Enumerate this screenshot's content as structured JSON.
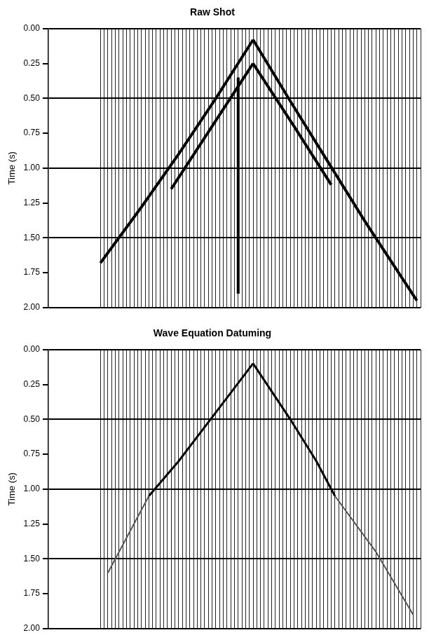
{
  "chart_data": [
    {
      "type": "line",
      "title": "Raw Shot",
      "y_label": "Time (s)",
      "xlim": [
        0,
        100
      ],
      "ylim": [
        0,
        2
      ],
      "xticks": [
        14,
        15,
        16,
        17,
        18,
        19,
        20,
        21,
        22,
        23,
        24,
        25,
        26,
        27,
        28,
        29,
        30,
        31,
        32,
        33,
        34,
        35,
        36,
        37,
        38,
        39,
        40,
        41,
        42,
        43,
        44,
        45,
        46,
        47,
        48,
        49,
        50,
        51,
        52,
        53,
        54,
        55,
        56,
        57,
        58,
        59,
        60,
        61,
        62,
        63,
        64,
        65,
        66,
        67,
        68,
        69,
        70,
        71,
        72,
        73,
        74,
        75,
        76,
        77,
        78,
        79,
        80,
        81,
        82,
        83,
        84,
        85,
        86,
        87,
        88,
        89,
        90,
        91,
        92,
        93,
        94,
        95,
        96,
        97,
        98,
        99,
        100
      ],
      "yticks": [
        {
          "value": 0,
          "label": "0.00"
        },
        {
          "value": 0.25,
          "label": "0.25"
        },
        {
          "value": 0.5,
          "label": "0.50"
        },
        {
          "value": 0.75,
          "label": "0.75"
        },
        {
          "value": 1,
          "label": "1.00"
        },
        {
          "value": 1.25,
          "label": "1.25"
        },
        {
          "value": 1.5,
          "label": "1.50"
        },
        {
          "value": 1.75,
          "label": "1.75"
        },
        {
          "value": 2,
          "label": "2.00"
        }
      ],
      "grid": true,
      "tick_labels": "y",
      "series": [
        {
          "color": "#000000",
          "x": [
            55,
            45,
            35,
            25,
            14
          ],
          "values": [
            0.08,
            0.5,
            0.9,
            1.28,
            1.68
          ]
        },
        {
          "color": "#000000",
          "x": [
            55,
            65,
            75,
            85,
            99
          ],
          "values": [
            0.08,
            0.52,
            0.95,
            1.38,
            1.95
          ]
        },
        {
          "color": "#000000",
          "x": [
            55,
            44,
            33
          ],
          "values": [
            0.25,
            0.7,
            1.15
          ]
        },
        {
          "color": "#000000",
          "x": [
            55,
            66,
            76
          ],
          "values": [
            0.25,
            0.7,
            1.12
          ]
        },
        {
          "color": "#000000",
          "x": [
            51,
            51
          ],
          "values": [
            0.35,
            1.9
          ]
        }
      ]
    },
    {
      "type": "line",
      "title": "Wave Equation Datuming",
      "y_label": "Time (s)",
      "xlim": [
        0,
        100
      ],
      "ylim": [
        0,
        2
      ],
      "xticks": [
        14,
        15,
        16,
        17,
        18,
        19,
        20,
        21,
        22,
        23,
        24,
        25,
        26,
        27,
        28,
        29,
        30,
        31,
        32,
        33,
        34,
        35,
        36,
        37,
        38,
        39,
        40,
        41,
        42,
        43,
        44,
        45,
        46,
        47,
        48,
        49,
        50,
        51,
        52,
        53,
        54,
        55,
        56,
        57,
        58,
        59,
        60,
        61,
        62,
        63,
        64,
        65,
        66,
        67,
        68,
        69,
        70,
        71,
        72,
        73,
        74,
        75,
        76,
        77,
        78,
        79,
        80,
        81,
        82,
        83,
        84,
        85,
        86,
        87,
        88,
        89,
        90,
        91,
        92,
        93,
        94,
        95,
        96,
        97,
        98,
        99,
        100
      ],
      "yticks": [
        {
          "value": 0,
          "label": "0.00"
        },
        {
          "value": 0.25,
          "label": "0.25"
        },
        {
          "value": 0.5,
          "label": "0.50"
        },
        {
          "value": 0.75,
          "label": "0.75"
        },
        {
          "value": 1,
          "label": "1.00"
        },
        {
          "value": 1.25,
          "label": "1.25"
        },
        {
          "value": 1.5,
          "label": "1.50"
        },
        {
          "value": 1.75,
          "label": "1.75"
        },
        {
          "value": 2,
          "label": "2.00"
        }
      ],
      "grid": true,
      "tick_labels": "y",
      "series": [
        {
          "color": "#000000",
          "x": [
            55,
            45,
            35,
            27
          ],
          "values": [
            0.1,
            0.45,
            0.8,
            1.05
          ]
        },
        {
          "color": "#000000",
          "x": [
            55,
            65,
            72,
            77
          ],
          "values": [
            0.1,
            0.5,
            0.8,
            1.05
          ]
        },
        {
          "color": "#555555",
          "x": [
            27,
            22,
            16
          ],
          "values": [
            1.05,
            1.3,
            1.6
          ]
        },
        {
          "color": "#555555",
          "x": [
            77,
            88,
            98
          ],
          "values": [
            1.05,
            1.45,
            1.9
          ]
        }
      ]
    }
  ]
}
